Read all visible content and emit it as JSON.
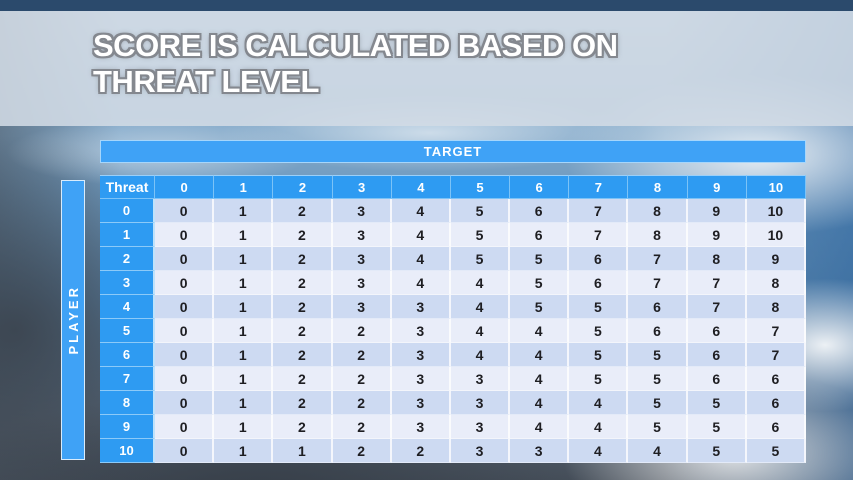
{
  "slide": {
    "title_lines": [
      "SCORE IS CALCULATED BASED ON",
      "THREAT LEVEL"
    ],
    "title_full": "SCORE IS CALCULATED BASED ON THREAT LEVEL"
  },
  "table": {
    "target_label": "TARGET",
    "player_label": "PLAYER",
    "corner_label": "Threat",
    "col_headers": [
      "0",
      "1",
      "2",
      "3",
      "4",
      "5",
      "6",
      "7",
      "8",
      "9",
      "10"
    ],
    "rows": [
      {
        "threat": "0",
        "values": [
          "0",
          "1",
          "2",
          "3",
          "4",
          "5",
          "6",
          "7",
          "8",
          "9",
          "10"
        ]
      },
      {
        "threat": "1",
        "values": [
          "0",
          "1",
          "2",
          "3",
          "4",
          "5",
          "6",
          "7",
          "8",
          "9",
          "10"
        ]
      },
      {
        "threat": "2",
        "values": [
          "0",
          "1",
          "2",
          "3",
          "4",
          "5",
          "5",
          "6",
          "7",
          "8",
          "9"
        ]
      },
      {
        "threat": "3",
        "values": [
          "0",
          "1",
          "2",
          "3",
          "4",
          "4",
          "5",
          "6",
          "7",
          "7",
          "8"
        ]
      },
      {
        "threat": "4",
        "values": [
          "0",
          "1",
          "2",
          "3",
          "3",
          "4",
          "5",
          "5",
          "6",
          "7",
          "8"
        ]
      },
      {
        "threat": "5",
        "values": [
          "0",
          "1",
          "2",
          "2",
          "3",
          "4",
          "4",
          "5",
          "6",
          "6",
          "7"
        ]
      },
      {
        "threat": "6",
        "values": [
          "0",
          "1",
          "2",
          "2",
          "3",
          "4",
          "4",
          "5",
          "5",
          "6",
          "7"
        ]
      },
      {
        "threat": "7",
        "values": [
          "0",
          "1",
          "2",
          "2",
          "3",
          "3",
          "4",
          "5",
          "5",
          "6",
          "6"
        ]
      },
      {
        "threat": "8",
        "values": [
          "0",
          "1",
          "2",
          "2",
          "3",
          "3",
          "4",
          "4",
          "5",
          "5",
          "6"
        ]
      },
      {
        "threat": "9",
        "values": [
          "0",
          "1",
          "2",
          "2",
          "3",
          "3",
          "4",
          "4",
          "5",
          "5",
          "6"
        ]
      },
      {
        "threat": "10",
        "values": [
          "0",
          "1",
          "1",
          "2",
          "2",
          "3",
          "3",
          "4",
          "4",
          "5",
          "5"
        ]
      }
    ]
  },
  "colors": {
    "accent_blue": "#2e9bf2",
    "bar_blue": "#3fa2f6",
    "top_bar_navy": "#2b4a6c",
    "row_even": "#cddaf2",
    "row_odd": "#e9edf9",
    "body_text": "#1e1e22",
    "title_fill": "#ffffff",
    "title_outline": "#84888f"
  }
}
